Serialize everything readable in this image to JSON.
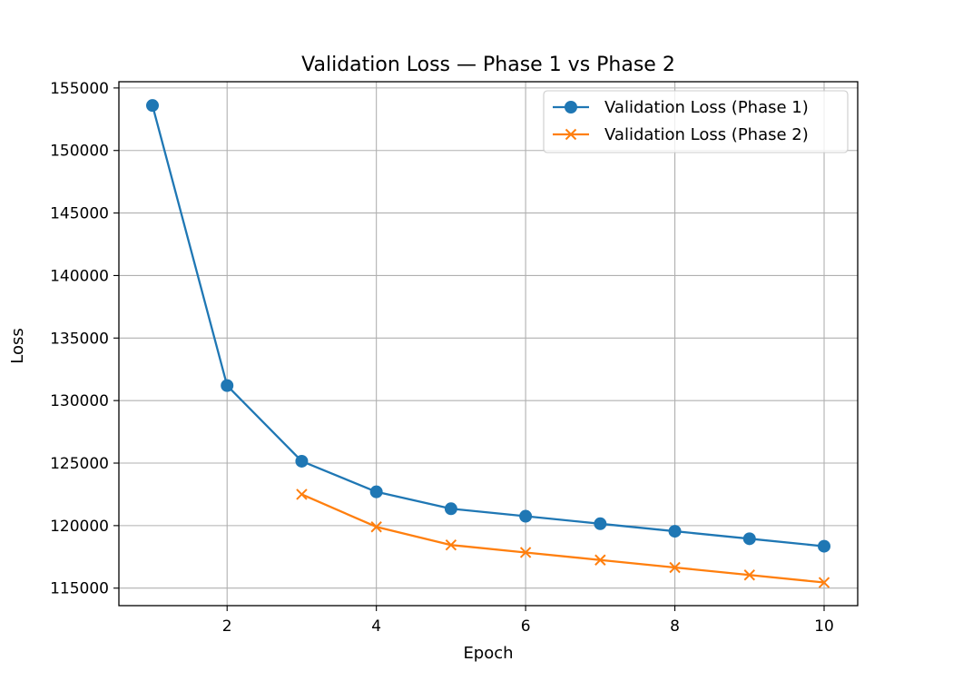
{
  "chart_data": {
    "type": "line",
    "title": "Validation Loss — Phase 1 vs Phase 2",
    "xlabel": "Epoch",
    "ylabel": "Loss",
    "xlim": [
      0.55,
      10.45
    ],
    "ylim": [
      113600,
      155500
    ],
    "xticks": [
      2,
      4,
      6,
      8,
      10
    ],
    "yticks": [
      115000,
      120000,
      125000,
      130000,
      135000,
      140000,
      145000,
      150000,
      155000
    ],
    "grid": true,
    "legend_position": "top-right",
    "series": [
      {
        "name": "Validation Loss (Phase 1)",
        "color": "#1f77b4",
        "marker": "circle",
        "x": [
          1,
          2,
          3,
          4,
          5,
          6,
          7,
          8,
          9,
          10
        ],
        "y": [
          153600,
          131200,
          125150,
          122700,
          121350,
          120750,
          120150,
          119550,
          118950,
          118350
        ]
      },
      {
        "name": "Validation Loss (Phase 2)",
        "color": "#ff7f0e",
        "marker": "x",
        "x": [
          3,
          4,
          5,
          6,
          7,
          8,
          9,
          10
        ],
        "y": [
          122500,
          119900,
          118450,
          117850,
          117250,
          116650,
          116050,
          115450
        ]
      }
    ]
  }
}
